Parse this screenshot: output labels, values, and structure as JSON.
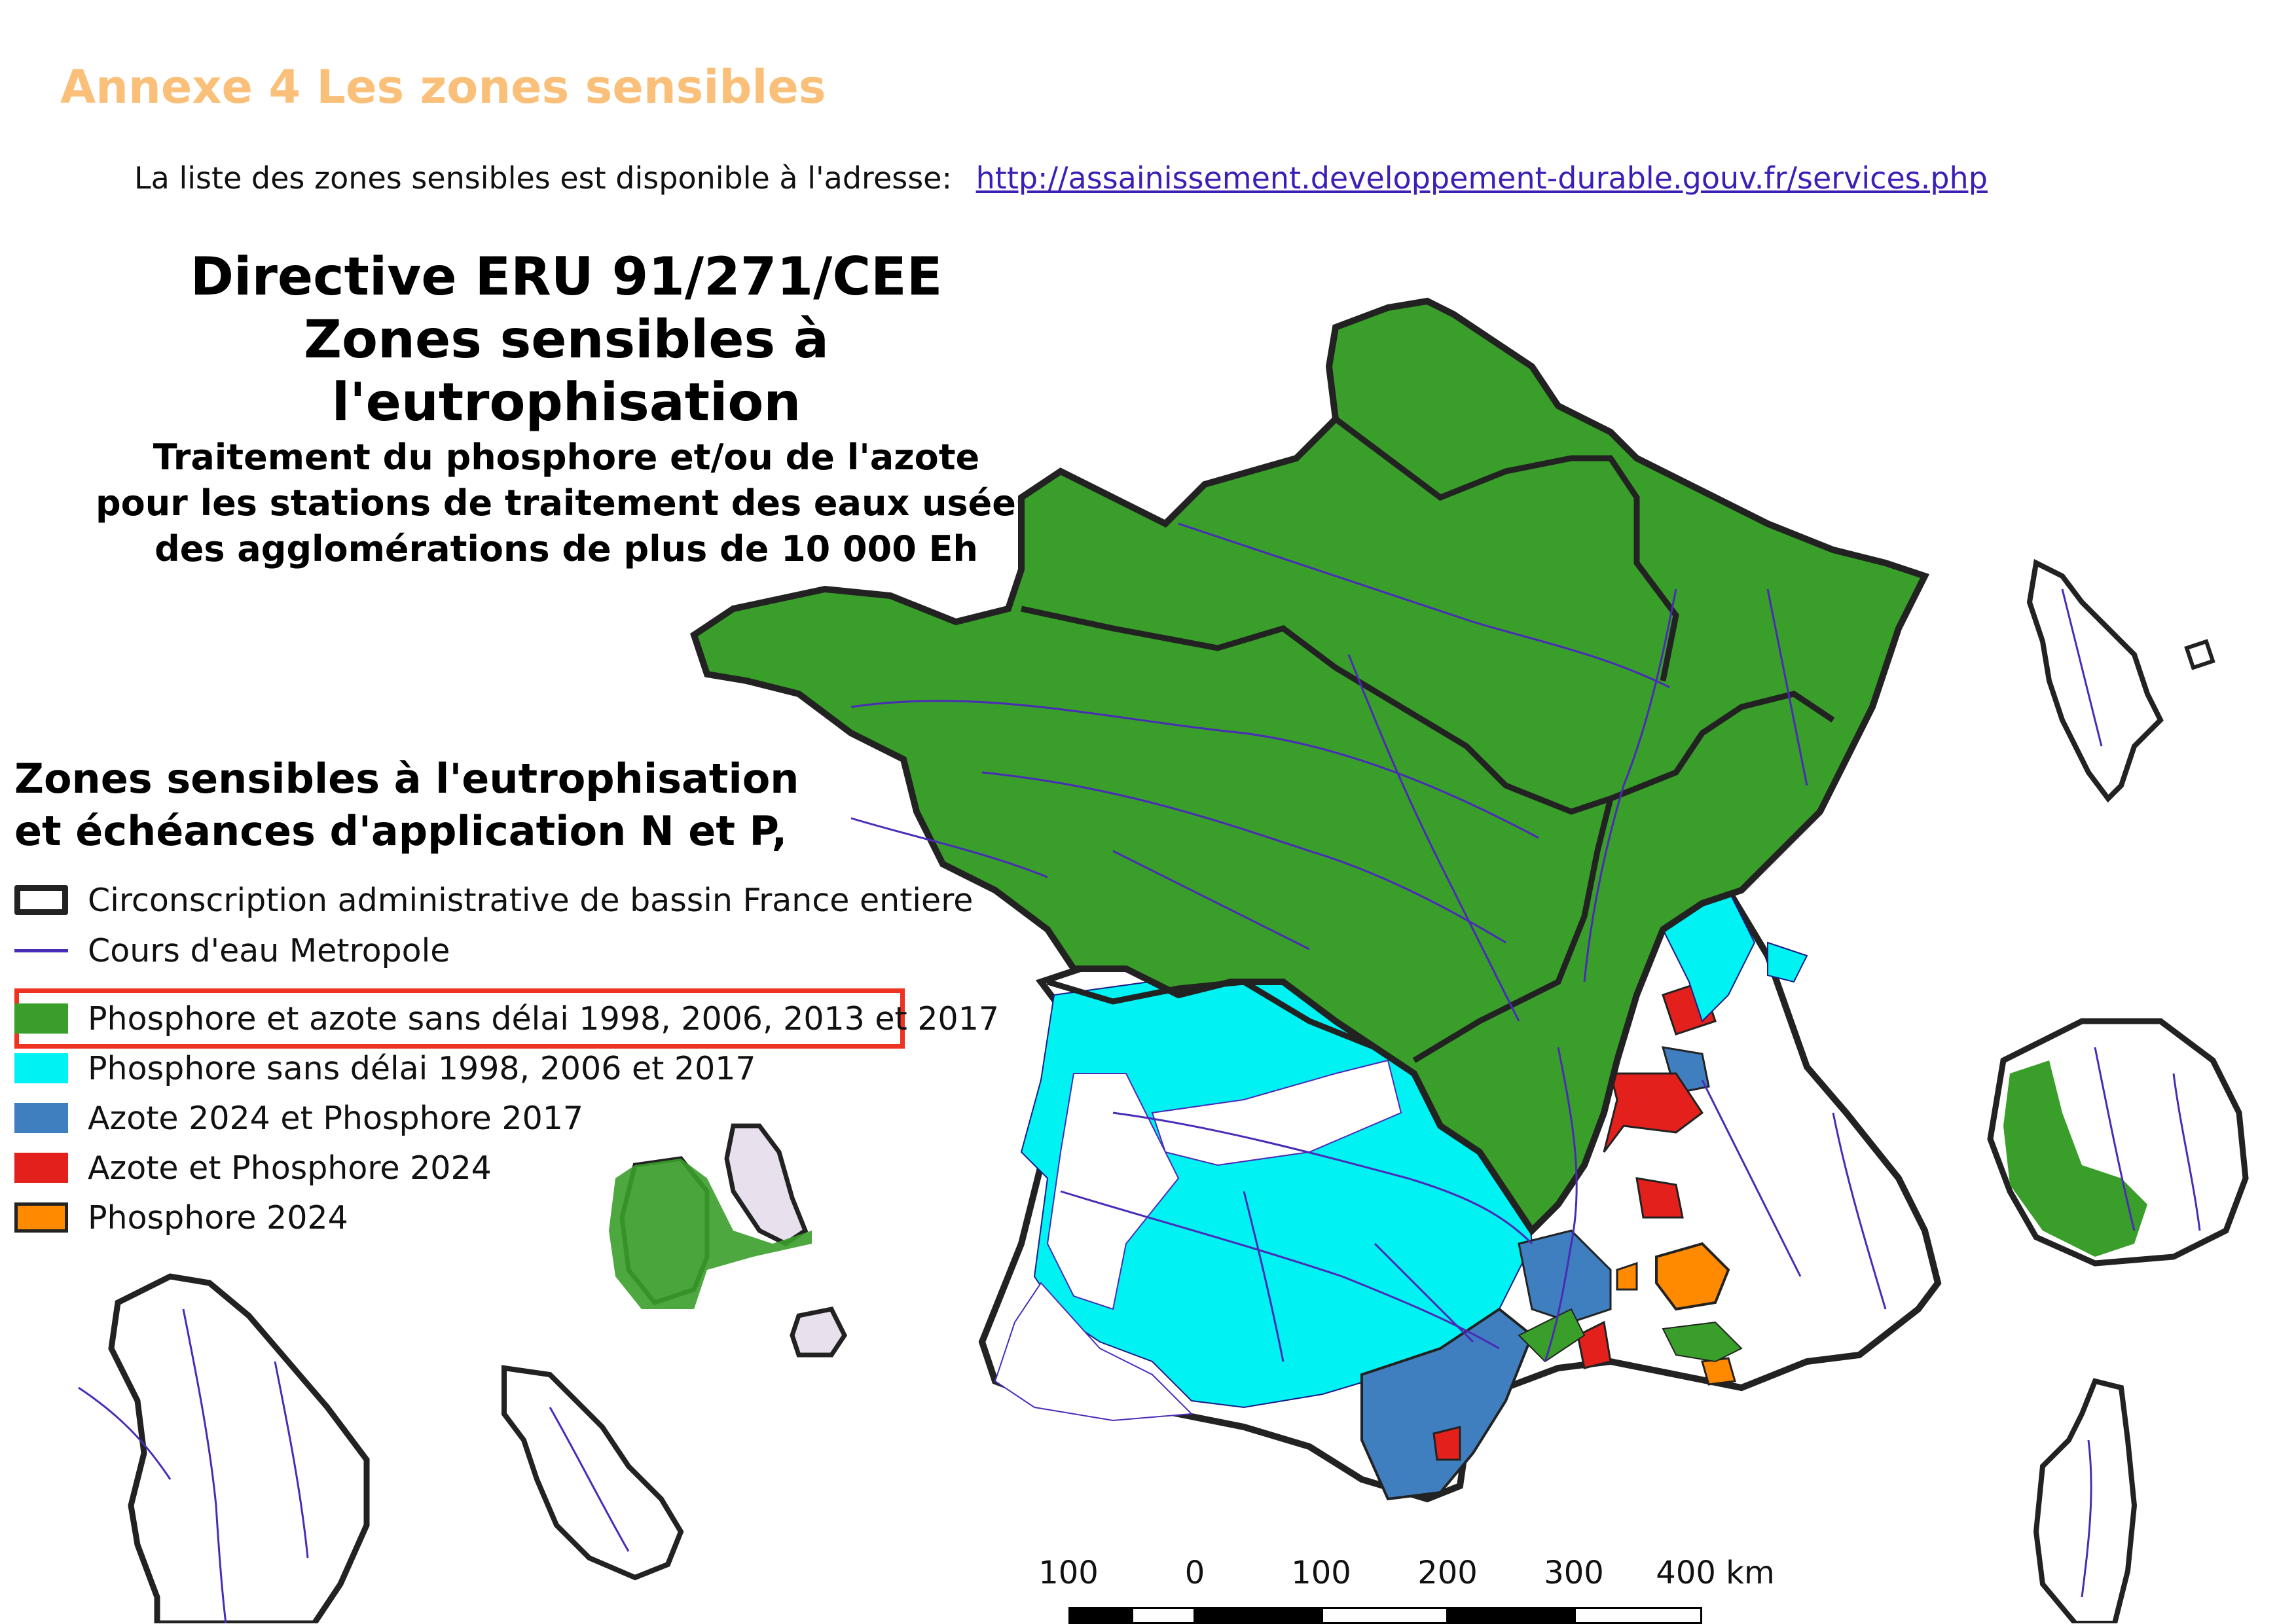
{
  "header": {
    "annex_title": "Annexe 4 Les zones sensibles",
    "intro_text": "La liste des zones sensibles est disponible à l'adresse:",
    "link": "http://assainissement.developpement-durable.gouv.fr/services.php"
  },
  "map_title": {
    "line1": "Directive ERU 91/271/CEE",
    "line2": "Zones sensibles à l'eutrophisation",
    "line3": "Traitement du phosphore et/ou de l'azote",
    "line4": "pour les stations de traitement des eaux usées",
    "line5": "des agglomérations de plus de 10 000 Eh"
  },
  "legend": {
    "title_line1": "Zones sensibles à l'eutrophisation",
    "title_line2": "et échéances d'application N et P,",
    "items": [
      {
        "label": "Circonscription administrative de bassin France entiere",
        "type": "outline",
        "color": "#222222"
      },
      {
        "label": "Cours d'eau Metropole",
        "type": "line",
        "color": "#4a2bb8"
      },
      {
        "label": "Phosphore et azote sans délai 1998, 2006, 2013 et 2017",
        "type": "fill",
        "color": "#3a9e2a",
        "highlighted": true
      },
      {
        "label": "Phosphore sans délai 1998, 2006 et 2017",
        "type": "fill",
        "color": "#00f2f2"
      },
      {
        "label": "Azote 2024 et Phosphore 2017",
        "type": "fill",
        "color": "#3f7fbf"
      },
      {
        "label": "Azote et Phosphore 2024",
        "type": "fill",
        "color": "#e3201c"
      },
      {
        "label": "Phosphore 2024",
        "type": "fill",
        "color": "#ff8a00"
      }
    ]
  },
  "scale_bar": {
    "labels": [
      "100",
      "0",
      "100",
      "200",
      "300",
      "400 km"
    ]
  },
  "colors": {
    "accent_title": "#FAC07A",
    "link": "#3b1fb6",
    "highlight_box": "#ee3322",
    "basin_border": "#222222",
    "rivers": "#4a2bb8"
  }
}
